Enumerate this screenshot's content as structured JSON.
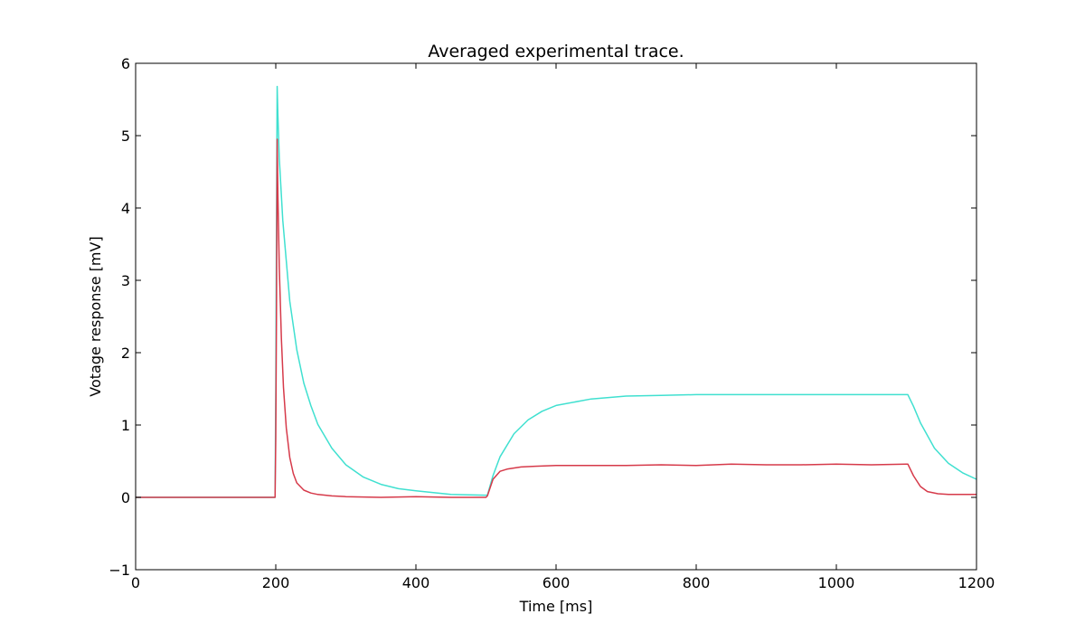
{
  "chart_data": {
    "type": "line",
    "title": "Averaged experimental trace.",
    "xlabel": "Time [ms]",
    "ylabel": "Votage response [mV]",
    "xlim": [
      0,
      1200
    ],
    "ylim": [
      -1,
      6
    ],
    "xticks": [
      0,
      200,
      400,
      600,
      800,
      1000,
      1200
    ],
    "xtick_labels": [
      "0",
      "200",
      "400",
      "600",
      "800",
      "1000",
      "1200"
    ],
    "yticks": [
      -1,
      0,
      1,
      2,
      3,
      4,
      5,
      6
    ],
    "ytick_labels": [
      "−1",
      "0",
      "1",
      "2",
      "3",
      "4",
      "5",
      "6"
    ],
    "grid": false,
    "legend": "none",
    "series": [
      {
        "color": "#40e0d0",
        "x": [
          0,
          198,
          199,
          200,
          201,
          202,
          203,
          205,
          210,
          220,
          230,
          240,
          250,
          260,
          280,
          300,
          325,
          350,
          375,
          400,
          450,
          500,
          502,
          510,
          520,
          540,
          560,
          580,
          600,
          650,
          700,
          750,
          800,
          900,
          1000,
          1100,
          1102,
          1110,
          1120,
          1140,
          1160,
          1180,
          1200
        ],
        "y": [
          0.0,
          0.0,
          0.0,
          1.5,
          3.8,
          5.68,
          5.3,
          4.69,
          3.83,
          2.71,
          2.04,
          1.58,
          1.27,
          1.01,
          0.68,
          0.45,
          0.28,
          0.18,
          0.12,
          0.09,
          0.04,
          0.03,
          0.03,
          0.3,
          0.56,
          0.88,
          1.07,
          1.19,
          1.27,
          1.36,
          1.4,
          1.41,
          1.42,
          1.42,
          1.42,
          1.42,
          1.42,
          1.26,
          1.03,
          0.68,
          0.47,
          0.34,
          0.25
        ]
      },
      {
        "color": "#d63a4a",
        "x": [
          0,
          198,
          199,
          200,
          201,
          202,
          203,
          205,
          208,
          211,
          215,
          220,
          225,
          230,
          240,
          250,
          260,
          280,
          300,
          350,
          400,
          450,
          500,
          502,
          510,
          520,
          530,
          550,
          570,
          600,
          650,
          700,
          750,
          800,
          850,
          900,
          950,
          1000,
          1050,
          1100,
          1102,
          1110,
          1120,
          1130,
          1145,
          1160,
          1180,
          1200
        ],
        "y": [
          0.0,
          0.0,
          0.0,
          0.82,
          2.5,
          4.95,
          4.2,
          3.18,
          2.2,
          1.52,
          0.96,
          0.55,
          0.33,
          0.2,
          0.1,
          0.06,
          0.04,
          0.02,
          0.01,
          0.0,
          0.01,
          0.0,
          0.0,
          0.02,
          0.25,
          0.36,
          0.39,
          0.42,
          0.43,
          0.44,
          0.44,
          0.44,
          0.45,
          0.44,
          0.46,
          0.45,
          0.45,
          0.46,
          0.45,
          0.46,
          0.46,
          0.3,
          0.15,
          0.08,
          0.05,
          0.04,
          0.04,
          0.04
        ]
      }
    ]
  }
}
